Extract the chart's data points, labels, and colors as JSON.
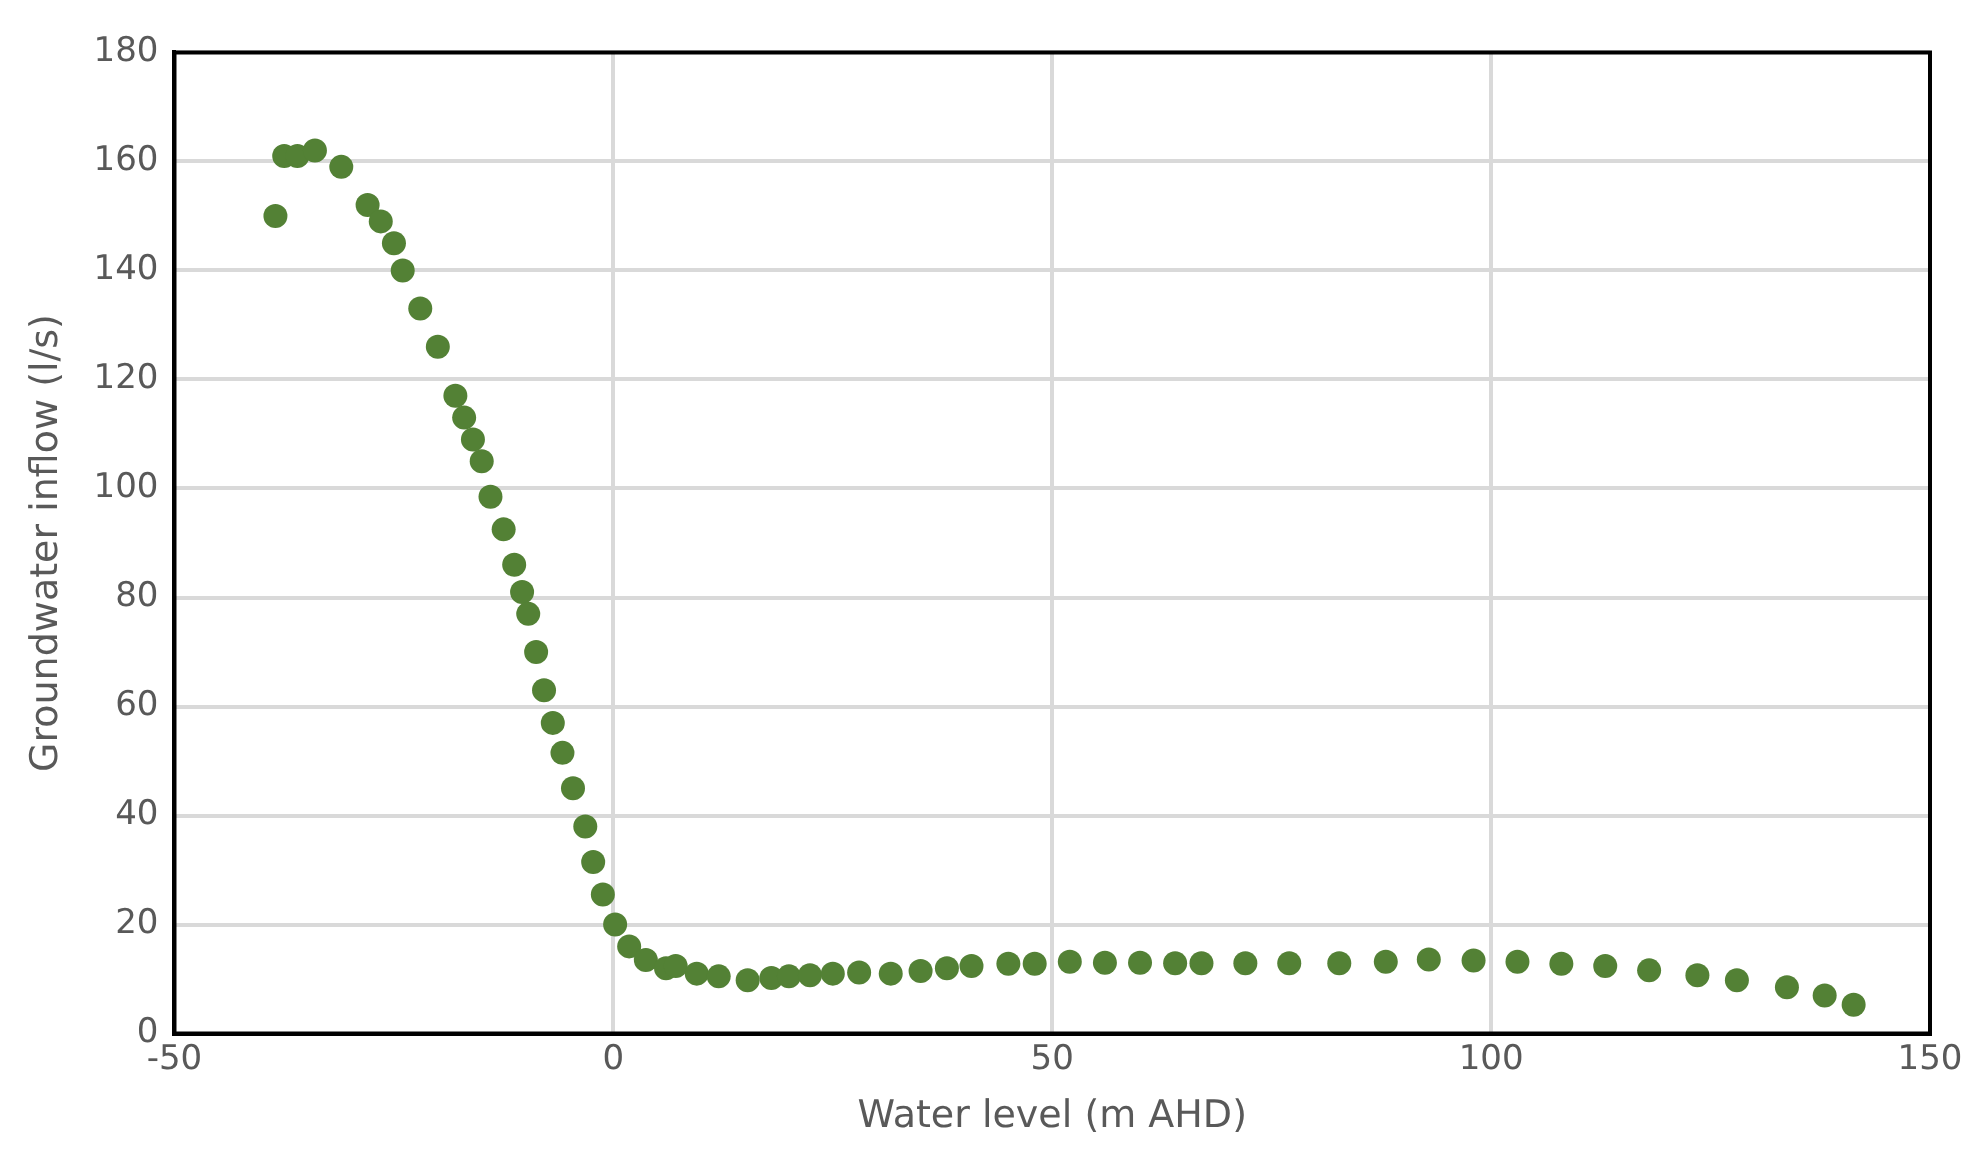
{
  "chart_data": {
    "type": "scatter",
    "xlabel": "Water level (m AHD)",
    "ylabel": "Groundwater inflow (l/s)",
    "xlim": [
      -50,
      150
    ],
    "xticks": [
      -50,
      0,
      50,
      100,
      150
    ],
    "ylim": [
      0,
      180
    ],
    "yticks": [
      0,
      20,
      40,
      60,
      80,
      100,
      120,
      140,
      160,
      180
    ],
    "grid": true,
    "legend": false,
    "marker": "circle",
    "series": [
      {
        "color": "#538135",
        "x": [
          -38.5,
          -37.5,
          -36,
          -34,
          -31,
          -28,
          -26.5,
          -25,
          -24,
          -22,
          -20,
          -18,
          -17,
          -16,
          -15,
          -14,
          -12.5,
          -11.3,
          -10.4,
          -9.7,
          -8.8,
          -7.9,
          -6.9,
          -5.8,
          -4.6,
          -3.2,
          -2.3,
          -1.2,
          0.2,
          1.8,
          3.7,
          6,
          7.1,
          9.5,
          12,
          15.3,
          18,
          20,
          22.4,
          25,
          28,
          31.6,
          35,
          38,
          40.8,
          45,
          48,
          52,
          56,
          60,
          64,
          67,
          72,
          77,
          82.7,
          88,
          92.9,
          98,
          103,
          108,
          113,
          118,
          123.5,
          128,
          133.7,
          138,
          141.3
        ],
        "values": [
          150,
          161,
          161,
          162,
          159,
          152,
          149,
          145,
          140,
          133,
          126,
          117,
          113,
          109,
          105,
          98.5,
          92.5,
          86,
          81,
          77,
          70,
          63,
          57,
          51.5,
          45,
          38,
          31.5,
          25.5,
          20,
          16,
          13.5,
          12,
          12.4,
          11,
          10.5,
          9.8,
          10.2,
          10.5,
          10.7,
          11,
          11.2,
          11,
          11.5,
          12,
          12.4,
          12.8,
          12.8,
          13.2,
          13,
          13,
          12.9,
          12.9,
          12.9,
          12.9,
          12.9,
          13.2,
          13.6,
          13.4,
          13.2,
          12.8,
          12.4,
          11.6,
          10.7,
          9.8,
          8.5,
          7,
          5.3
        ]
      }
    ]
  }
}
